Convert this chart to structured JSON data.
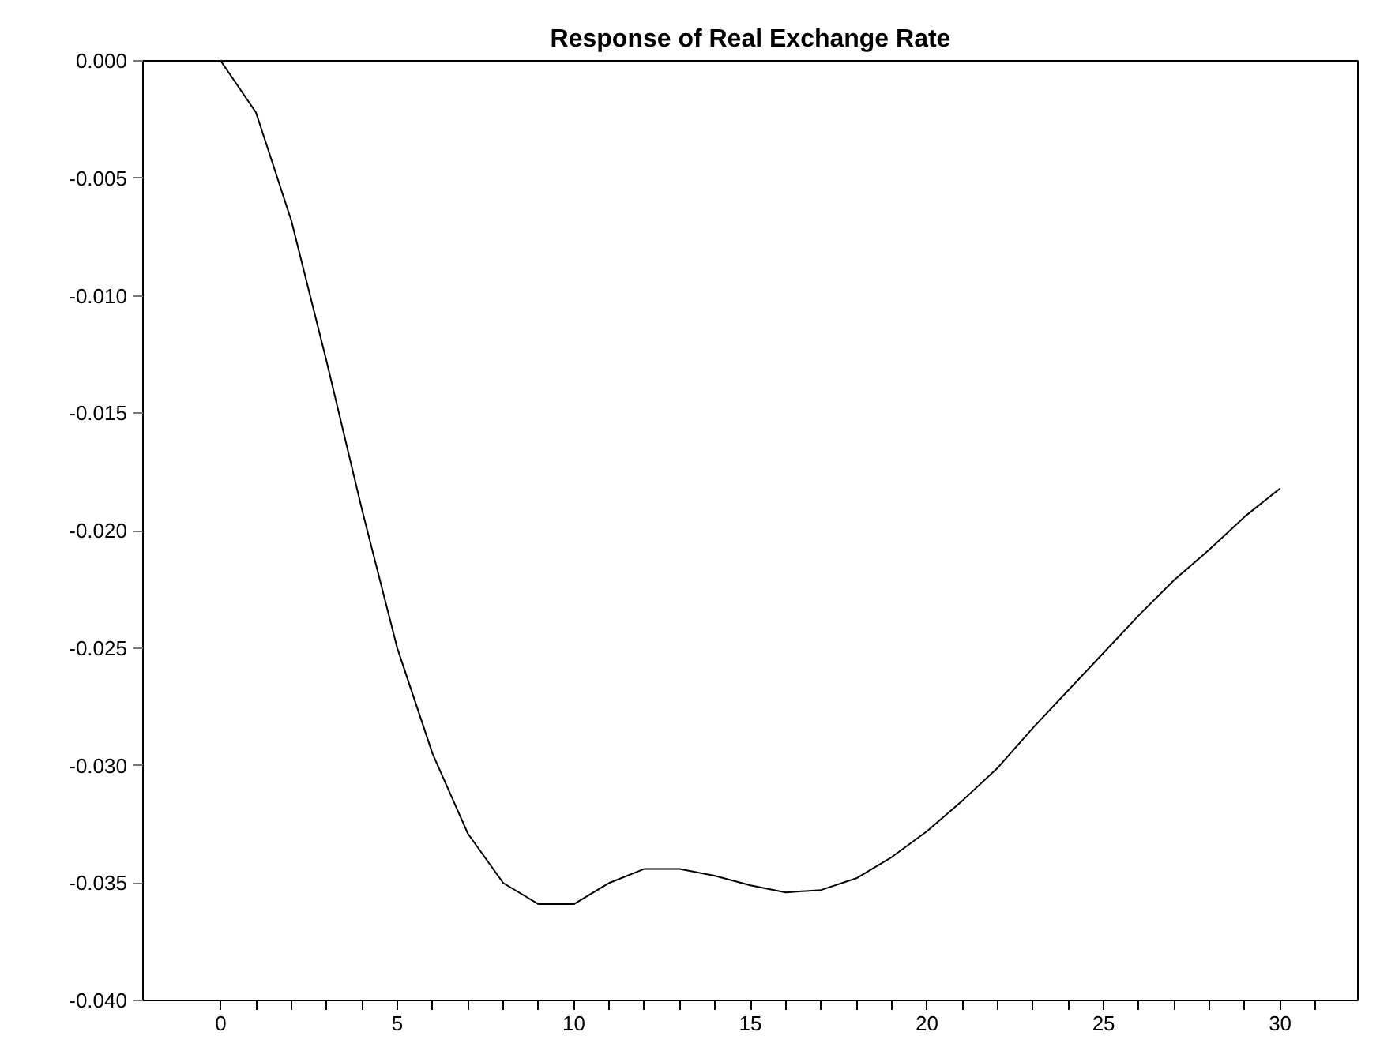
{
  "chart_data": {
    "type": "line",
    "title": "Response of Real Exchange Rate",
    "x": [
      0,
      1,
      2,
      3,
      4,
      5,
      6,
      7,
      8,
      9,
      10,
      11,
      12,
      13,
      14,
      15,
      16,
      17,
      18,
      19,
      20,
      21,
      22,
      23,
      24,
      25,
      26,
      27,
      28,
      29,
      30
    ],
    "series": [
      {
        "color": "#000000",
        "values": [
          0,
          -0.0022,
          -0.0068,
          -0.0128,
          -0.0191,
          -0.025,
          -0.0295,
          -0.0329,
          -0.035,
          -0.0359,
          -0.0359,
          -0.035,
          -0.0344,
          -0.0344,
          -0.0347,
          -0.0351,
          -0.0354,
          -0.0353,
          -0.0348,
          -0.0339,
          -0.0328,
          -0.0315,
          -0.0301,
          -0.0284,
          -0.0268,
          -0.0252,
          -0.0236,
          -0.0221,
          -0.0208,
          -0.0194,
          -0.0182
        ]
      }
    ],
    "xlim": [
      -2.2,
      32.2
    ],
    "ylim": [
      -0.04,
      0.0
    ],
    "xticks": [
      0,
      {
        "value": 1,
        "label": null
      },
      {
        "value": 2,
        "label": null
      },
      {
        "value": 3,
        "label": null
      },
      {
        "value": 4,
        "label": null
      },
      5,
      {
        "value": 6,
        "label": null
      },
      {
        "value": 7,
        "label": null
      },
      {
        "value": 8,
        "label": null
      },
      {
        "value": 9,
        "label": null
      },
      10,
      {
        "value": 11,
        "label": null
      },
      {
        "value": 12,
        "label": null
      },
      {
        "value": 13,
        "label": null
      },
      {
        "value": 14,
        "label": null
      },
      15,
      {
        "value": 16,
        "label": null
      },
      {
        "value": 17,
        "label": null
      },
      {
        "value": 18,
        "label": null
      },
      {
        "value": 19,
        "label": null
      },
      20,
      {
        "value": 21,
        "label": null
      },
      {
        "value": 22,
        "label": null
      },
      {
        "value": 23,
        "label": null
      },
      {
        "value": 24,
        "label": null
      },
      25,
      {
        "value": 26,
        "label": null
      },
      {
        "value": 27,
        "label": null
      },
      {
        "value": 28,
        "label": null
      },
      {
        "value": 29,
        "label": null
      },
      30,
      {
        "value": 31,
        "label": null
      }
    ],
    "yticks": [
      {
        "value": 0,
        "label": "0.000"
      },
      {
        "value": -0.005,
        "label": "-0.005"
      },
      {
        "value": -0.01,
        "label": "-0.010"
      },
      {
        "value": -0.015,
        "label": "-0.015"
      },
      {
        "value": -0.02,
        "label": "-0.020"
      },
      {
        "value": -0.025,
        "label": "-0.025"
      },
      {
        "value": -0.03,
        "label": "-0.030"
      },
      {
        "value": -0.035,
        "label": "-0.035"
      },
      {
        "value": -0.04,
        "label": "-0.040"
      }
    ],
    "line_style": "solid"
  }
}
